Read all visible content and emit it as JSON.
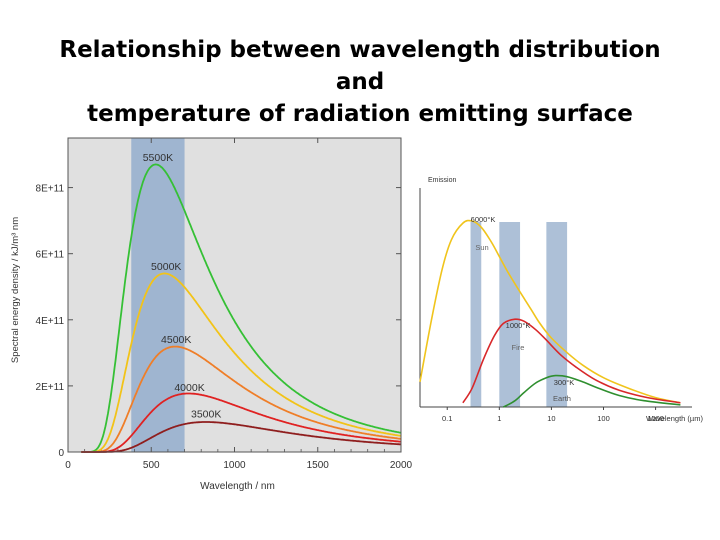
{
  "slide": {
    "title_line1": "Relationship between wavelength distribution and",
    "title_line2": "temperature of radiation emitting surface"
  },
  "colors": {
    "plot_bg": "#e0e0e0",
    "visible_band": "#9fb5d0",
    "c5500": "#35c035",
    "c5000": "#f2c318",
    "c4500": "#ef7e28",
    "c4000": "#e02222",
    "c3500": "#8f1e1e",
    "sun": "#f0c41c",
    "fire": "#d8282a",
    "earth": "#2f8f2f"
  },
  "chart_data": [
    {
      "type": "line",
      "title": "",
      "xlabel": "Wavelength / nm",
      "ylabel": "Spectral energy density / kJ/m³ nm",
      "xlim": [
        0,
        2000
      ],
      "ylim": [
        0,
        950000000000
      ],
      "x_ticks": [
        0,
        500,
        1000,
        1500,
        2000
      ],
      "x_tick_labels": [
        "0",
        "500",
        "1000",
        "1500",
        "2000"
      ],
      "y_ticks": [
        0,
        200000000000,
        400000000000,
        600000000000,
        800000000000
      ],
      "y_tick_labels": [
        "0",
        "2E+11",
        "4E+11",
        "6E+11",
        "8E+11"
      ],
      "visible_band": [
        380,
        700
      ],
      "series": [
        {
          "name": "5500K",
          "temperature": 5500,
          "color_key": "c5500",
          "label_at": [
            540,
            880000000000
          ]
        },
        {
          "name": "5000K",
          "temperature": 5000,
          "color_key": "c5000",
          "label_at": [
            590,
            550000000000
          ]
        },
        {
          "name": "4500K",
          "temperature": 4500,
          "color_key": "c4500",
          "label_at": [
            650,
            330000000000
          ]
        },
        {
          "name": "4000K",
          "temperature": 4000,
          "color_key": "c4000",
          "label_at": [
            730,
            185000000000
          ]
        },
        {
          "name": "3500K",
          "temperature": 3500,
          "color_key": "c3500",
          "label_at": [
            830,
            105000000000
          ]
        }
      ]
    },
    {
      "type": "line",
      "title": "",
      "xlabel": "Wavelength (µm)",
      "ylabel": "Emission",
      "x_scale": "log",
      "xlim": [
        0.03,
        5000
      ],
      "x_ticks": [
        0.1,
        1,
        10,
        100,
        1000
      ],
      "x_tick_labels": [
        "0.1",
        "1",
        "10",
        "100",
        "1000"
      ],
      "grid": false,
      "series": [
        {
          "name": "6000°K",
          "object_label": "Sun",
          "color_key": "sun",
          "x": [
            0.03,
            0.05,
            0.08,
            0.12,
            0.2,
            0.3,
            0.45,
            0.7,
            1,
            1.5,
            2.5,
            4,
            6,
            10,
            20,
            40,
            100,
            300,
            1000,
            3000
          ],
          "y": [
            0.12,
            0.42,
            0.66,
            0.8,
            0.88,
            0.89,
            0.86,
            0.79,
            0.72,
            0.64,
            0.55,
            0.47,
            0.4,
            0.33,
            0.26,
            0.2,
            0.14,
            0.09,
            0.045,
            0.02
          ]
        },
        {
          "name": "1000°K",
          "object_label": "Fire",
          "color_key": "fire",
          "x": [
            0.2,
            0.3,
            0.5,
            0.8,
            1.2,
            2,
            3,
            5,
            8,
            15,
            30,
            70,
            200,
            700,
            3000
          ],
          "y": [
            0.02,
            0.09,
            0.23,
            0.34,
            0.4,
            0.42,
            0.41,
            0.37,
            0.32,
            0.25,
            0.19,
            0.13,
            0.08,
            0.045,
            0.02
          ]
        },
        {
          "name": "300°K",
          "object_label": "Earth",
          "color_key": "earth",
          "x": [
            1.2,
            2,
            3,
            5,
            8,
            12,
            20,
            40,
            80,
            200,
            600,
            3000
          ],
          "y": [
            0.0,
            0.03,
            0.07,
            0.115,
            0.14,
            0.15,
            0.145,
            0.12,
            0.09,
            0.055,
            0.03,
            0.01
          ]
        }
      ],
      "highlight_bands": [
        [
          0.28,
          0.45
        ],
        [
          1,
          2.5
        ],
        [
          8,
          20
        ]
      ]
    }
  ]
}
